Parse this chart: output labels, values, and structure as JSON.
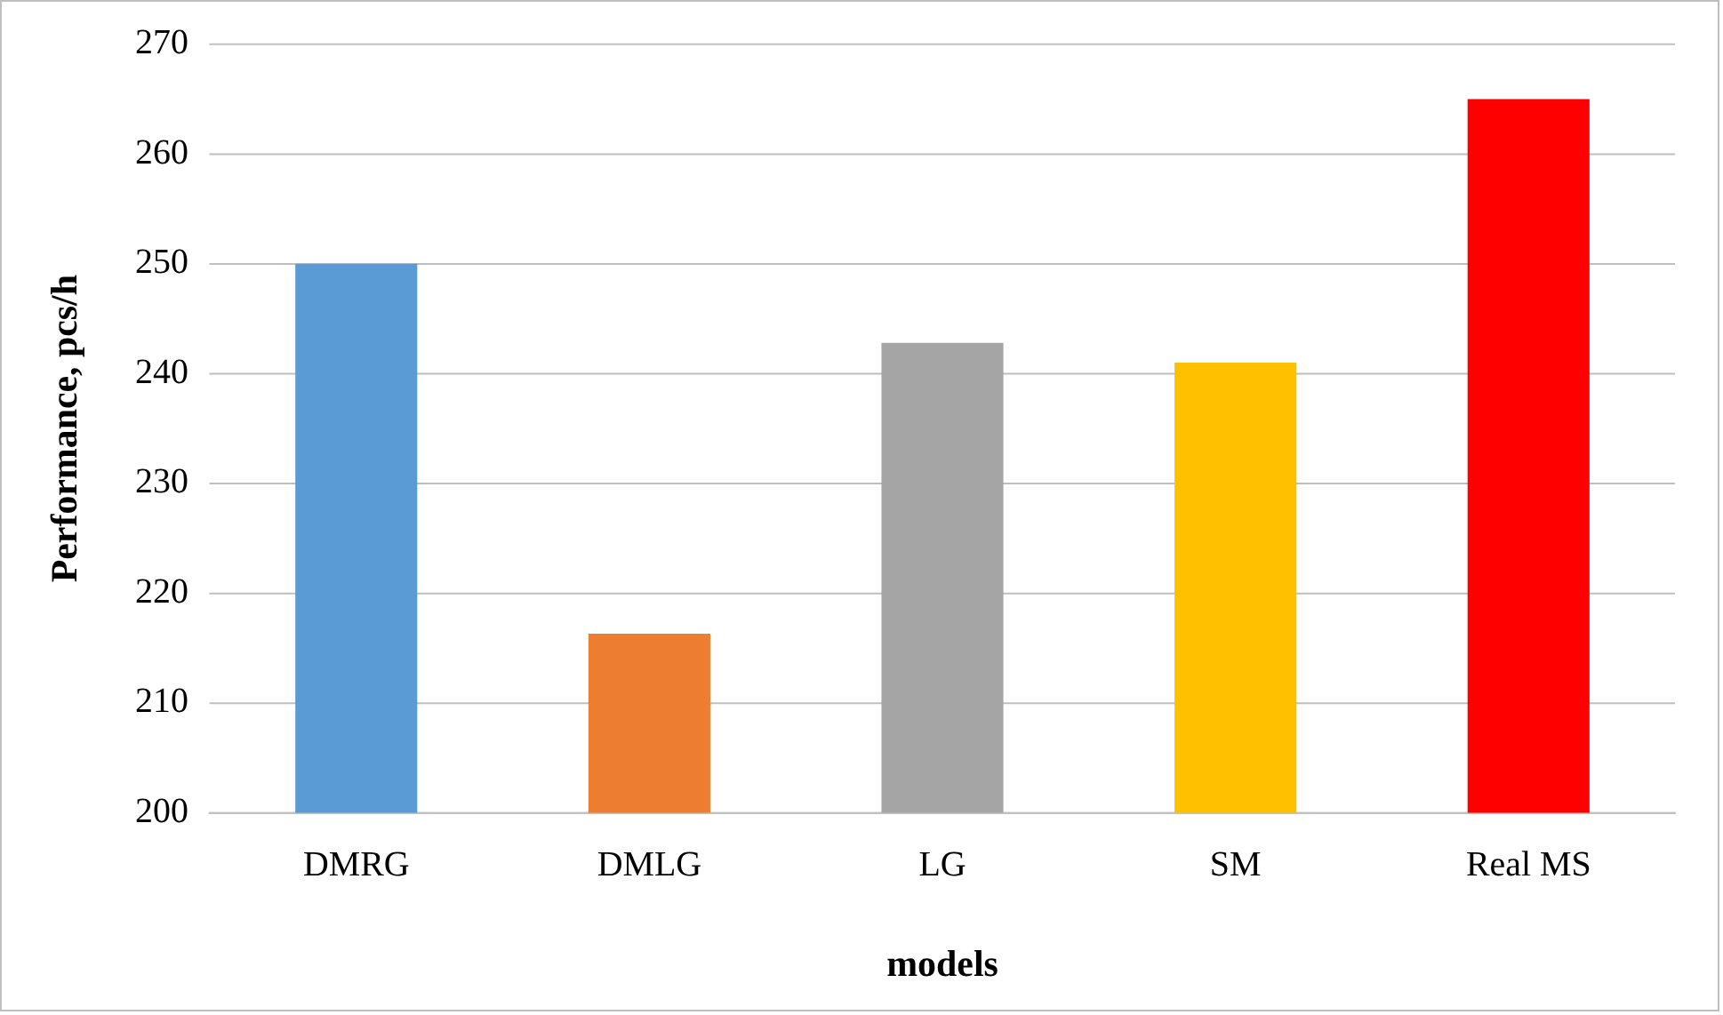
{
  "chart_data": {
    "type": "bar",
    "xlabel": "models",
    "ylabel": "Performance, pcs/h",
    "categories": [
      "DMRG",
      "DMLG",
      "LG",
      "SM",
      "Real MS"
    ],
    "values": [
      250,
      216.3,
      242.8,
      241,
      265
    ],
    "colors": [
      "#5b9bd5",
      "#ed7d31",
      "#a5a5a5",
      "#ffc000",
      "#ff0000"
    ],
    "ylim": [
      200,
      270
    ],
    "yticks": [
      200,
      210,
      220,
      230,
      240,
      250,
      260,
      270
    ],
    "grid": "y",
    "legend": false
  }
}
